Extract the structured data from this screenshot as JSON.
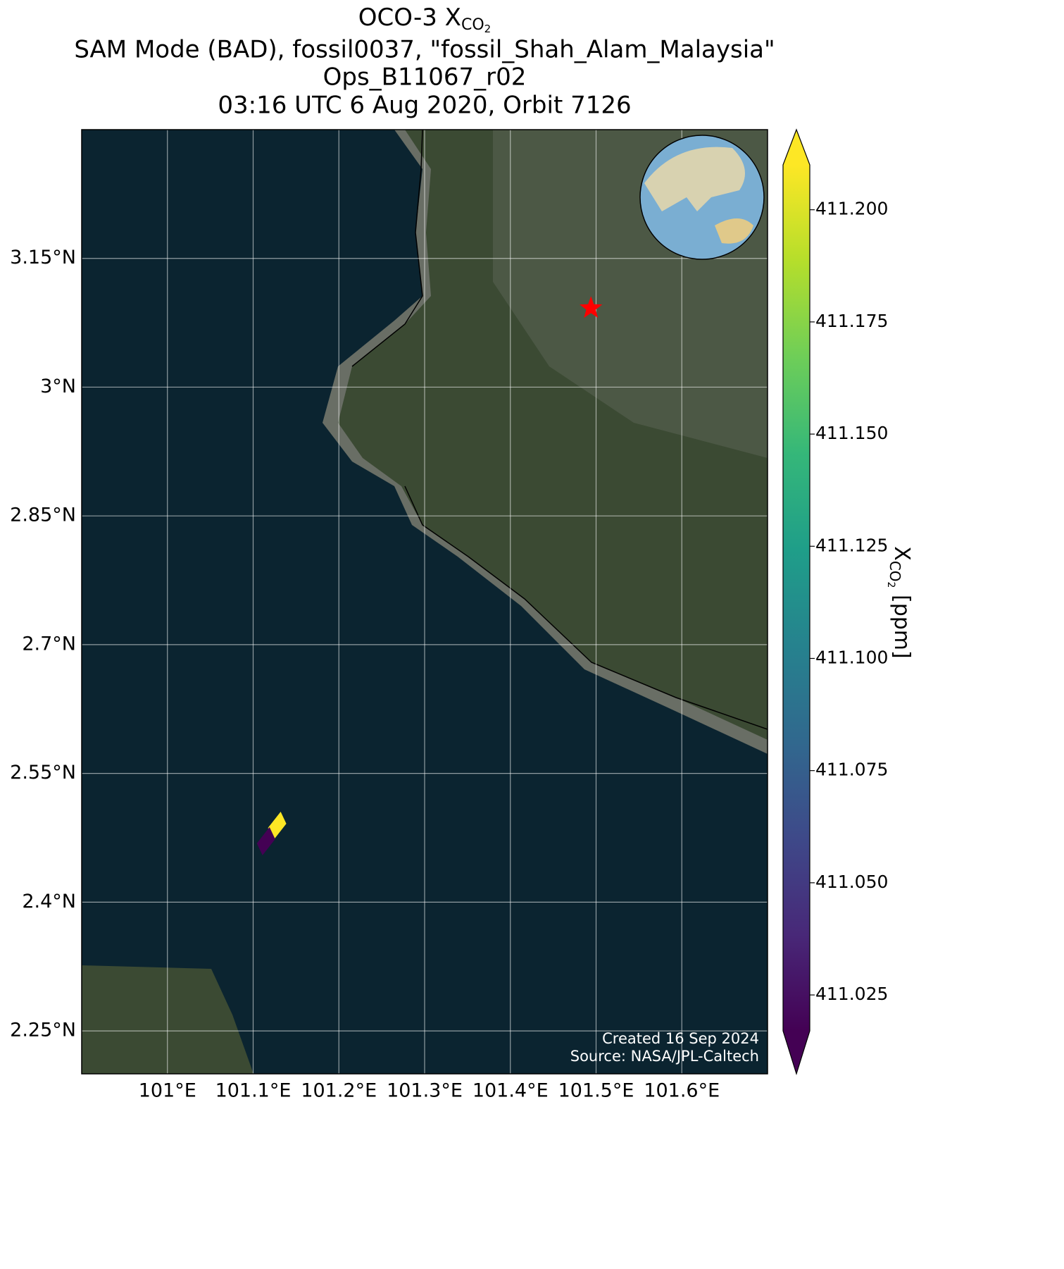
{
  "chart_data": {
    "type": "map",
    "title": "OCO-3 X",
    "title_sub": "CO",
    "title_subsub": "2",
    "subtitle_lines": [
      "SAM Mode (BAD), fossil0037, \"fossil_Shah_Alam_Malaysia\"",
      "Ops_B11067_r02",
      "03:16 UTC 6 Aug 2020, Orbit 7126"
    ],
    "xlim": [
      100.9,
      101.7
    ],
    "ylim": [
      2.2,
      3.3
    ],
    "xticks": [
      {
        "value": 101.0,
        "label": "101°E"
      },
      {
        "value": 101.1,
        "label": "101.1°E"
      },
      {
        "value": 101.2,
        "label": "101.2°E"
      },
      {
        "value": 101.3,
        "label": "101.3°E"
      },
      {
        "value": 101.4,
        "label": "101.4°E"
      },
      {
        "value": 101.5,
        "label": "101.5°E"
      },
      {
        "value": 101.6,
        "label": "101.6°E"
      }
    ],
    "yticks": [
      {
        "value": 2.25,
        "label": "2.25°N"
      },
      {
        "value": 2.4,
        "label": "2.4°N"
      },
      {
        "value": 2.55,
        "label": "2.55°N"
      },
      {
        "value": 2.7,
        "label": "2.7°N"
      },
      {
        "value": 2.85,
        "label": "2.85°N"
      },
      {
        "value": 3.0,
        "label": "3°N"
      },
      {
        "value": 3.15,
        "label": "3.15°N"
      }
    ],
    "grid": true,
    "target": {
      "lon": 101.494,
      "lat": 3.092,
      "color": "#ff0000"
    },
    "soundings": {
      "lon": [
        101.128,
        101.115
      ],
      "lat": [
        2.489,
        2.471
      ],
      "values": [
        411.21,
        411.02
      ]
    },
    "colorbar": {
      "lim": [
        411.017,
        411.21
      ],
      "ticks": [
        {
          "value": 411.025,
          "label": "411.025"
        },
        {
          "value": 411.05,
          "label": "411.050"
        },
        {
          "value": 411.075,
          "label": "411.075"
        },
        {
          "value": 411.1,
          "label": "411.100"
        },
        {
          "value": 411.125,
          "label": "411.125"
        },
        {
          "value": 411.15,
          "label": "411.150"
        },
        {
          "value": 411.175,
          "label": "411.175"
        },
        {
          "value": 411.2,
          "label": "411.200"
        }
      ],
      "label": "X",
      "label_sub": "CO",
      "label_subsub": "2",
      "label_unit": " [ppm]",
      "colormap": [
        "#440154",
        "#482878",
        "#3e4989",
        "#31688e",
        "#26828e",
        "#1f9e89",
        "#35b779",
        "#6ece58",
        "#b5de2b",
        "#fde725"
      ]
    },
    "footnotes": [
      "Created 16 Sep 2024",
      "Source: NASA/JPL-Caltech"
    ]
  }
}
